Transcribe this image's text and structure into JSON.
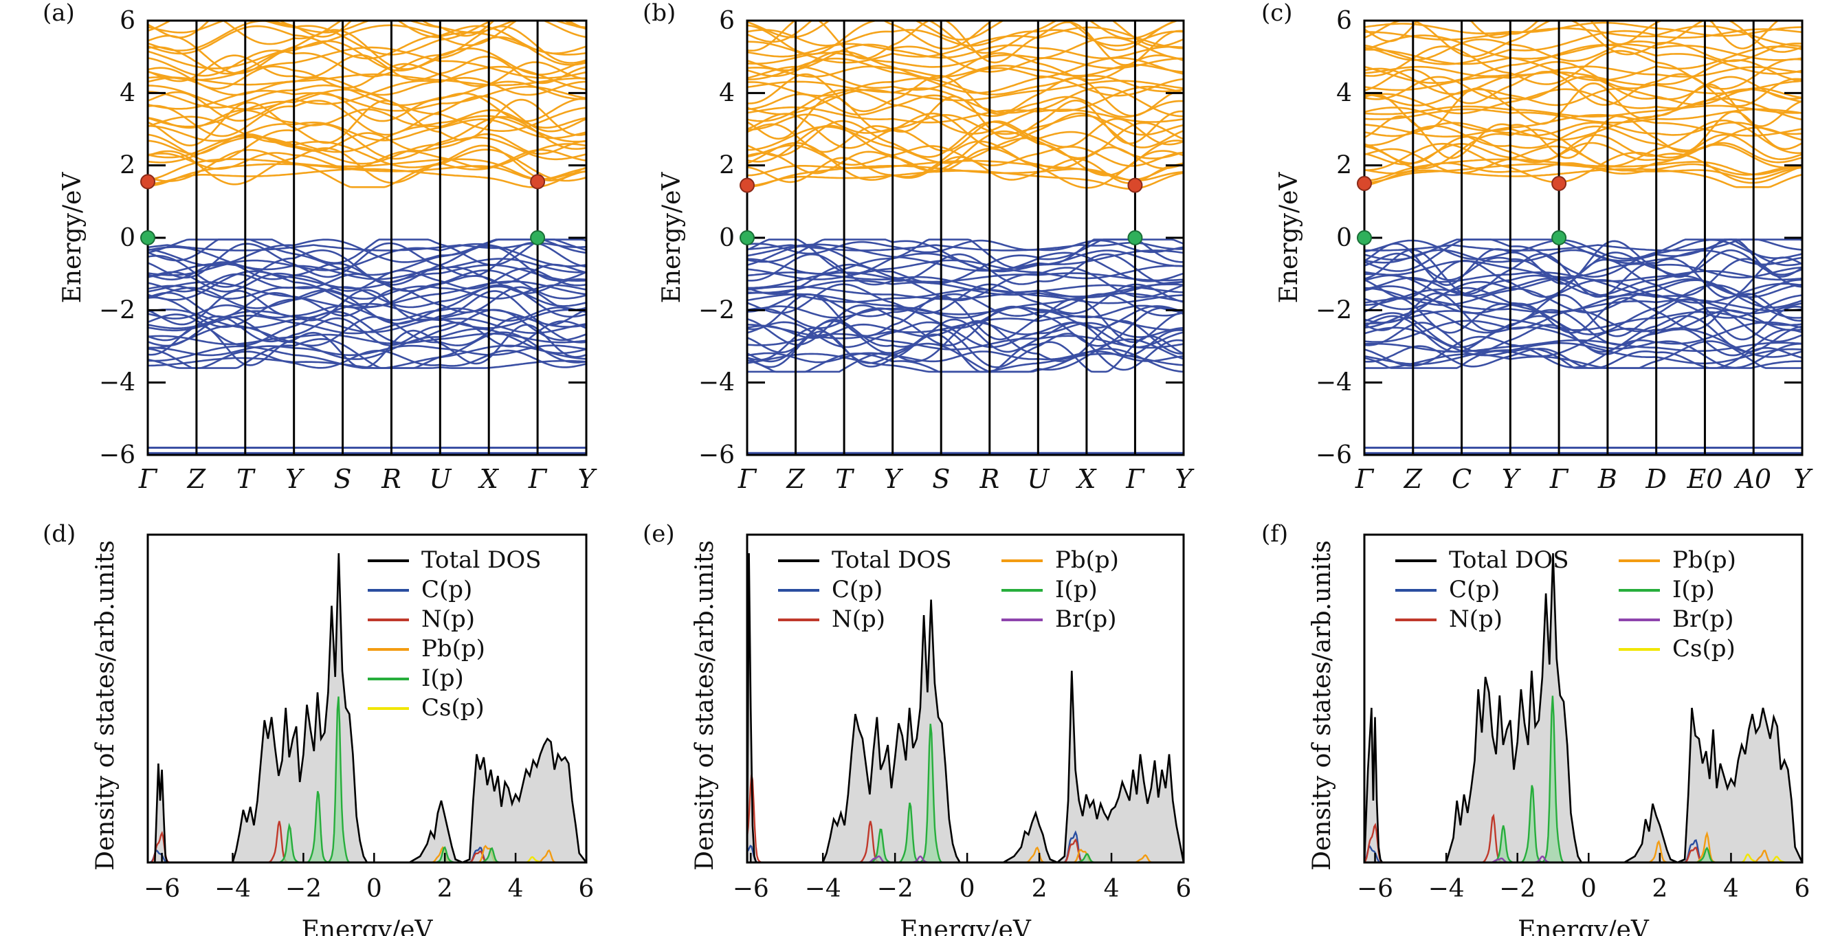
{
  "chart_data": [
    {
      "panel": "(a)",
      "type": "line",
      "kind": "band",
      "ylabel": "Energy/eV",
      "ylim": [
        -6,
        6
      ],
      "yticks": [
        -6,
        -4,
        -2,
        0,
        2,
        4,
        6
      ],
      "kpoints": [
        "Γ",
        "Z",
        "T",
        "Y",
        "S",
        "R",
        "U",
        "X",
        "Γ",
        "Y"
      ],
      "cbm_eV": 1.55,
      "vbm_eV": 0.0,
      "bands": {
        "conduction_range": [
          1.5,
          6.0
        ],
        "valence_range": [
          -3.5,
          -0.15
        ],
        "deep": [
          -5.8,
          -5.95
        ]
      },
      "colors": {
        "conduction": "#f5a31a",
        "valence": "#3a4fa3"
      }
    },
    {
      "panel": "(b)",
      "type": "line",
      "kind": "band",
      "ylabel": "Energy/eV",
      "ylim": [
        -6,
        6
      ],
      "yticks": [
        -6,
        -4,
        -2,
        0,
        2,
        4,
        6
      ],
      "kpoints": [
        "Γ",
        "Z",
        "T",
        "Y",
        "S",
        "R",
        "U",
        "X",
        "Γ",
        "Y"
      ],
      "cbm_eV": 1.45,
      "vbm_eV": 0.0,
      "bands": {
        "conduction_range": [
          1.45,
          6.0
        ],
        "valence_range": [
          -3.6,
          -0.15
        ],
        "deep": [
          -5.95,
          -5.95
        ]
      },
      "colors": {
        "conduction": "#f5a31a",
        "valence": "#3a4fa3"
      }
    },
    {
      "panel": "(c)",
      "type": "line",
      "kind": "band",
      "ylabel": "Energy/eV",
      "ylim": [
        -6,
        6
      ],
      "yticks": [
        -6,
        -4,
        -2,
        0,
        2,
        4,
        6
      ],
      "kpoints": [
        "Γ",
        "Z",
        "C",
        "Y",
        "Γ",
        "B",
        "D",
        "E0",
        "A0",
        "Y"
      ],
      "cbm_eV": 1.5,
      "vbm_eV": 0.0,
      "bands": {
        "conduction_range": [
          1.5,
          5.9
        ],
        "valence_range": [
          -3.5,
          -0.15
        ],
        "deep": [
          -5.8,
          -5.95
        ]
      },
      "colors": {
        "conduction": "#f5a31a",
        "valence": "#3a4fa3"
      }
    },
    {
      "panel": "(d)",
      "type": "area",
      "kind": "dos",
      "xlabel": "Energy/eV",
      "ylabel": "Density of states/arb.units",
      "xlim": [
        -6.4,
        6
      ],
      "xticks": [
        -6,
        -4,
        -2,
        0,
        2,
        4,
        6
      ],
      "legend_cols": [
        [
          "Total DOS",
          "C(p)",
          "N(p)",
          "Pb(p)",
          "I(p)",
          "Cs(p)"
        ]
      ],
      "total_dos": {
        "x": [
          -6.4,
          -6.2,
          -6.1,
          -6.05,
          -6.0,
          -5.95,
          -5.9,
          -5.85,
          -5.8,
          -5.6,
          -4.0,
          -3.9,
          -3.8,
          -3.7,
          -3.6,
          -3.5,
          -3.4,
          -3.3,
          -3.2,
          -3.1,
          -3.0,
          -2.9,
          -2.8,
          -2.7,
          -2.6,
          -2.5,
          -2.4,
          -2.3,
          -2.2,
          -2.1,
          -2.0,
          -1.9,
          -1.8,
          -1.7,
          -1.6,
          -1.5,
          -1.4,
          -1.3,
          -1.2,
          -1.1,
          -1.0,
          -0.9,
          -0.8,
          -0.7,
          -0.6,
          -0.5,
          -0.4,
          -0.3,
          -0.2,
          0.0,
          1.0,
          1.3,
          1.5,
          1.6,
          1.7,
          1.8,
          1.9,
          2.0,
          2.1,
          2.2,
          2.3,
          2.5,
          2.7,
          2.8,
          2.9,
          3.0,
          3.1,
          3.2,
          3.3,
          3.4,
          3.5,
          3.6,
          3.7,
          3.8,
          3.9,
          4.0,
          4.1,
          4.2,
          4.3,
          4.4,
          4.5,
          4.6,
          4.7,
          4.8,
          4.9,
          5.0,
          5.1,
          5.2,
          5.3,
          5.4,
          5.5,
          5.6,
          5.7,
          5.8,
          6.0
        ],
        "y": [
          0,
          0,
          0.32,
          0.2,
          0.3,
          0.15,
          0.02,
          0,
          0,
          0,
          0,
          0.04,
          0.1,
          0.17,
          0.13,
          0.18,
          0.12,
          0.2,
          0.33,
          0.46,
          0.4,
          0.47,
          0.37,
          0.28,
          0.33,
          0.5,
          0.34,
          0.4,
          0.44,
          0.26,
          0.35,
          0.51,
          0.43,
          0.36,
          0.55,
          0.4,
          0.42,
          0.55,
          0.83,
          0.6,
          1.0,
          0.62,
          0.5,
          0.48,
          0.35,
          0.15,
          0.07,
          0.02,
          0,
          0,
          0,
          0.02,
          0.06,
          0.1,
          0.08,
          0.16,
          0.2,
          0.15,
          0.1,
          0.05,
          0.01,
          0,
          0.01,
          0.2,
          0.35,
          0.3,
          0.34,
          0.25,
          0.3,
          0.23,
          0.28,
          0.18,
          0.26,
          0.24,
          0.19,
          0.22,
          0.2,
          0.25,
          0.3,
          0.28,
          0.33,
          0.31,
          0.35,
          0.38,
          0.4,
          0.39,
          0.3,
          0.35,
          0.33,
          0.34,
          0.32,
          0.2,
          0.12,
          0.03,
          0
        ]
      },
      "pdos": [
        {
          "name": "C(p)",
          "color": "#2a4ea0",
          "peaks": [
            [
              -6.1,
              0.06
            ],
            [
              2.95,
              0.08
            ]
          ]
        },
        {
          "name": "N(p)",
          "color": "#c0392b",
          "peaks": [
            [
              -6.05,
              0.14
            ],
            [
              -2.7,
              0.14
            ],
            [
              2.95,
              0.06
            ]
          ]
        },
        {
          "name": "Pb(p)",
          "color": "#f39c12",
          "peaks": [
            [
              1.9,
              0.06
            ],
            [
              3.2,
              0.09
            ],
            [
              4.9,
              0.05
            ]
          ]
        },
        {
          "name": "I(p)",
          "color": "#27ae3c",
          "peaks": [
            [
              -1.0,
              0.55
            ],
            [
              -1.6,
              0.24
            ],
            [
              -2.4,
              0.12
            ],
            [
              2.0,
              0.05
            ],
            [
              3.3,
              0.05
            ]
          ]
        },
        {
          "name": "Cs(p)",
          "color": "#f1e600",
          "peaks": [
            [
              4.5,
              0.02
            ]
          ]
        }
      ]
    },
    {
      "panel": "(e)",
      "type": "area",
      "kind": "dos",
      "xlabel": "Energy/eV",
      "ylabel": "Density of states/arb.units",
      "xlim": [
        -6.1,
        6
      ],
      "xticks": [
        -6,
        -4,
        -2,
        0,
        2,
        4,
        6
      ],
      "legend_cols": [
        [
          "Total DOS",
          "C(p)",
          "N(p)"
        ],
        [
          "Pb(p)",
          "I(p)",
          "Br(p)"
        ]
      ],
      "total_dos": {
        "x": [
          -6.1,
          -6.05,
          -6.0,
          -5.95,
          -5.9,
          -5.85,
          -5.8,
          -5.6,
          -4.0,
          -3.9,
          -3.8,
          -3.7,
          -3.6,
          -3.5,
          -3.4,
          -3.3,
          -3.2,
          -3.1,
          -3.0,
          -2.9,
          -2.8,
          -2.7,
          -2.6,
          -2.5,
          -2.4,
          -2.3,
          -2.2,
          -2.1,
          -2.0,
          -1.9,
          -1.8,
          -1.7,
          -1.6,
          -1.5,
          -1.4,
          -1.3,
          -1.2,
          -1.1,
          -1.0,
          -0.9,
          -0.8,
          -0.7,
          -0.6,
          -0.5,
          -0.4,
          -0.3,
          -0.2,
          0.0,
          1.0,
          1.3,
          1.5,
          1.6,
          1.7,
          1.8,
          1.9,
          2.0,
          2.1,
          2.2,
          2.3,
          2.5,
          2.7,
          2.8,
          2.9,
          3.0,
          3.1,
          3.2,
          3.3,
          3.4,
          3.5,
          3.6,
          3.7,
          3.8,
          3.9,
          4.0,
          4.1,
          4.2,
          4.3,
          4.4,
          4.5,
          4.6,
          4.7,
          4.8,
          4.9,
          5.0,
          5.1,
          5.2,
          5.3,
          5.4,
          5.5,
          5.6,
          5.7,
          5.8,
          6.0
        ],
        "y": [
          0,
          1.0,
          0.5,
          0.12,
          0.02,
          0,
          0,
          0,
          0,
          0.03,
          0.08,
          0.14,
          0.12,
          0.16,
          0.12,
          0.22,
          0.36,
          0.48,
          0.43,
          0.4,
          0.31,
          0.22,
          0.36,
          0.47,
          0.3,
          0.33,
          0.38,
          0.24,
          0.34,
          0.45,
          0.41,
          0.33,
          0.5,
          0.37,
          0.4,
          0.5,
          0.8,
          0.55,
          0.85,
          0.58,
          0.47,
          0.45,
          0.31,
          0.14,
          0.06,
          0.02,
          0,
          0,
          0,
          0.02,
          0.05,
          0.1,
          0.09,
          0.13,
          0.16,
          0.12,
          0.09,
          0.04,
          0.01,
          0,
          0.02,
          0.2,
          0.62,
          0.3,
          0.2,
          0.15,
          0.22,
          0.18,
          0.2,
          0.14,
          0.19,
          0.16,
          0.14,
          0.17,
          0.18,
          0.21,
          0.26,
          0.23,
          0.2,
          0.3,
          0.22,
          0.35,
          0.26,
          0.19,
          0.24,
          0.33,
          0.21,
          0.3,
          0.24,
          0.35,
          0.2,
          0.12,
          0.0
        ]
      },
      "pdos": [
        {
          "name": "C(p)",
          "color": "#2a4ea0",
          "peaks": [
            [
              -6.05,
              0.08
            ],
            [
              2.95,
              0.16
            ]
          ]
        },
        {
          "name": "N(p)",
          "color": "#c0392b",
          "peaks": [
            [
              -6.0,
              0.32
            ],
            [
              -2.7,
              0.14
            ],
            [
              2.95,
              0.12
            ]
          ]
        },
        {
          "name": "Pb(p)",
          "color": "#f39c12",
          "peaks": [
            [
              1.9,
              0.06
            ],
            [
              3.2,
              0.07
            ],
            [
              4.9,
              0.03
            ]
          ]
        },
        {
          "name": "I(p)",
          "color": "#27ae3c",
          "peaks": [
            [
              -1.0,
              0.46
            ],
            [
              -1.6,
              0.2
            ],
            [
              -2.4,
              0.11
            ],
            [
              3.3,
              0.03
            ]
          ]
        },
        {
          "name": "Br(p)",
          "color": "#8e44ad",
          "peaks": [
            [
              -2.5,
              0.03
            ],
            [
              -1.3,
              0.02
            ]
          ]
        }
      ]
    },
    {
      "panel": "(f)",
      "type": "area",
      "kind": "dos",
      "xlabel": "Energy/eV",
      "ylabel": "Density of states/arb.units",
      "xlim": [
        -6.3,
        6
      ],
      "xticks": [
        -6,
        -4,
        -2,
        0,
        2,
        4,
        6
      ],
      "legend_cols": [
        [
          "Total DOS",
          "C(p)",
          "N(p)"
        ],
        [
          "Pb(p)",
          "I(p)",
          "Br(p)",
          "Cs(p)"
        ]
      ],
      "total_dos": {
        "x": [
          -6.3,
          -6.2,
          -6.1,
          -6.05,
          -6.0,
          -5.95,
          -5.9,
          -5.85,
          -5.8,
          -5.6,
          -4.0,
          -3.9,
          -3.8,
          -3.7,
          -3.6,
          -3.5,
          -3.4,
          -3.3,
          -3.2,
          -3.1,
          -3.0,
          -2.9,
          -2.8,
          -2.7,
          -2.6,
          -2.5,
          -2.4,
          -2.3,
          -2.2,
          -2.1,
          -2.0,
          -1.9,
          -1.8,
          -1.7,
          -1.6,
          -1.5,
          -1.4,
          -1.3,
          -1.2,
          -1.1,
          -1.0,
          -0.9,
          -0.8,
          -0.7,
          -0.6,
          -0.5,
          -0.4,
          -0.3,
          -0.2,
          0.0,
          1.0,
          1.3,
          1.5,
          1.6,
          1.7,
          1.8,
          1.9,
          2.0,
          2.1,
          2.2,
          2.3,
          2.5,
          2.7,
          2.8,
          2.9,
          3.0,
          3.1,
          3.2,
          3.3,
          3.4,
          3.5,
          3.6,
          3.7,
          3.8,
          3.9,
          4.0,
          4.1,
          4.2,
          4.3,
          4.4,
          4.5,
          4.6,
          4.7,
          4.8,
          4.9,
          5.0,
          5.1,
          5.2,
          5.3,
          5.4,
          5.5,
          5.6,
          5.7,
          5.8,
          6.0
        ],
        "y": [
          0,
          0.3,
          0.5,
          0.2,
          0.47,
          0.2,
          0.05,
          0.01,
          0,
          0,
          0,
          0.04,
          0.08,
          0.2,
          0.12,
          0.22,
          0.16,
          0.24,
          0.33,
          0.56,
          0.42,
          0.6,
          0.55,
          0.41,
          0.35,
          0.54,
          0.38,
          0.43,
          0.46,
          0.3,
          0.39,
          0.56,
          0.45,
          0.38,
          0.62,
          0.44,
          0.46,
          0.6,
          0.87,
          0.64,
          1.0,
          0.66,
          0.54,
          0.52,
          0.38,
          0.16,
          0.08,
          0.02,
          0,
          0,
          0,
          0.02,
          0.06,
          0.14,
          0.1,
          0.19,
          0.15,
          0.12,
          0.08,
          0.04,
          0.01,
          0,
          0.01,
          0.22,
          0.5,
          0.41,
          0.4,
          0.32,
          0.36,
          0.27,
          0.43,
          0.24,
          0.32,
          0.28,
          0.24,
          0.27,
          0.25,
          0.33,
          0.38,
          0.35,
          0.43,
          0.48,
          0.42,
          0.44,
          0.5,
          0.45,
          0.4,
          0.47,
          0.44,
          0.3,
          0.33,
          0.3,
          0.2,
          0.05,
          0
        ]
      },
      "pdos": [
        {
          "name": "C(p)",
          "color": "#2a4ea0",
          "peaks": [
            [
              -6.1,
              0.08
            ],
            [
              2.95,
              0.12
            ]
          ]
        },
        {
          "name": "N(p)",
          "color": "#c0392b",
          "peaks": [
            [
              -6.05,
              0.18
            ],
            [
              -2.7,
              0.16
            ],
            [
              2.95,
              0.08
            ]
          ]
        },
        {
          "name": "Pb(p)",
          "color": "#f39c12",
          "peaks": [
            [
              1.95,
              0.07
            ],
            [
              3.3,
              0.1
            ],
            [
              4.9,
              0.05
            ]
          ]
        },
        {
          "name": "I(p)",
          "color": "#27ae3c",
          "peaks": [
            [
              -1.0,
              0.55
            ],
            [
              -1.6,
              0.26
            ],
            [
              -2.4,
              0.12
            ],
            [
              3.3,
              0.05
            ]
          ]
        },
        {
          "name": "Br(p)",
          "color": "#8e44ad",
          "peaks": [
            [
              -2.5,
              0.02
            ],
            [
              -1.3,
              0.02
            ]
          ]
        },
        {
          "name": "Cs(p)",
          "color": "#f1e600",
          "peaks": [
            [
              4.5,
              0.03
            ],
            [
              5.3,
              0.02
            ]
          ]
        }
      ]
    }
  ]
}
